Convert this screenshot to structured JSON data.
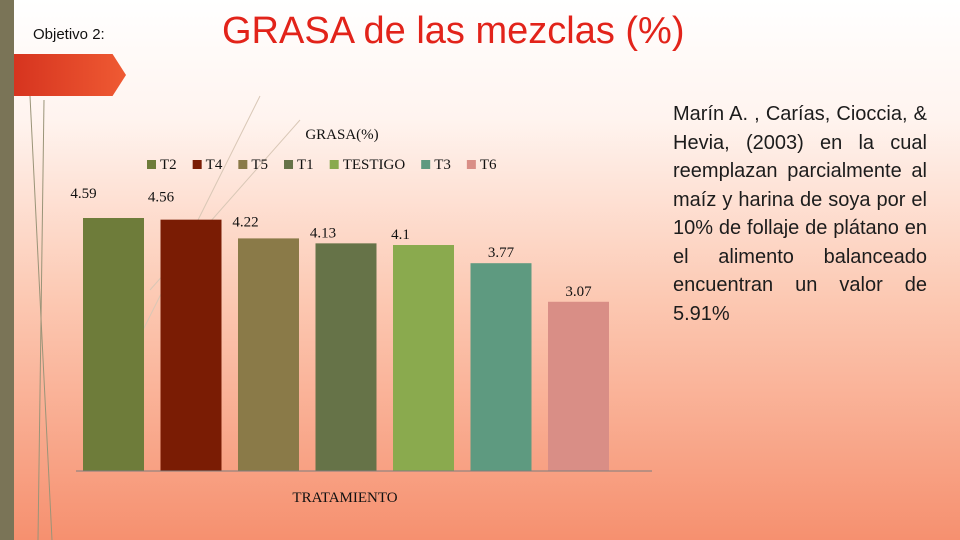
{
  "header": {
    "objective_label": "Objetivo 2:",
    "title": "GRASA de las mezclas (%)"
  },
  "side_note": {
    "text": "Marín A. , Carías, Cioccia, & Hevia, (2003) en la cual reemplazan parcialmente al maíz y harina de soya por el 10% de follaje de plátano en el alimento balanceado encuentran un valor de 5.91%"
  },
  "colors": {
    "title": "#e2231a",
    "accent_tab": "#e8482a"
  },
  "chart_data": {
    "type": "bar",
    "title": "GRASA(%)",
    "xlabel": "TRATAMIENTO",
    "ylabel": "",
    "ylim": [
      0,
      5
    ],
    "legend_position": "top",
    "grid": false,
    "series": [
      {
        "name": "T2",
        "value": 4.59,
        "color": "#6e7c3a"
      },
      {
        "name": "T4",
        "value": 4.56,
        "color": "#7a1c04"
      },
      {
        "name": "T5",
        "value": 4.22,
        "color": "#8a7a48"
      },
      {
        "name": "T1",
        "value": 4.13,
        "color": "#667348"
      },
      {
        "name": "TESTIGO",
        "value": 4.1,
        "color": "#8aaa4e"
      },
      {
        "name": "T3",
        "value": 3.77,
        "color": "#5e9a80"
      },
      {
        "name": "T6",
        "value": 3.07,
        "color": "#d98e86"
      }
    ]
  }
}
